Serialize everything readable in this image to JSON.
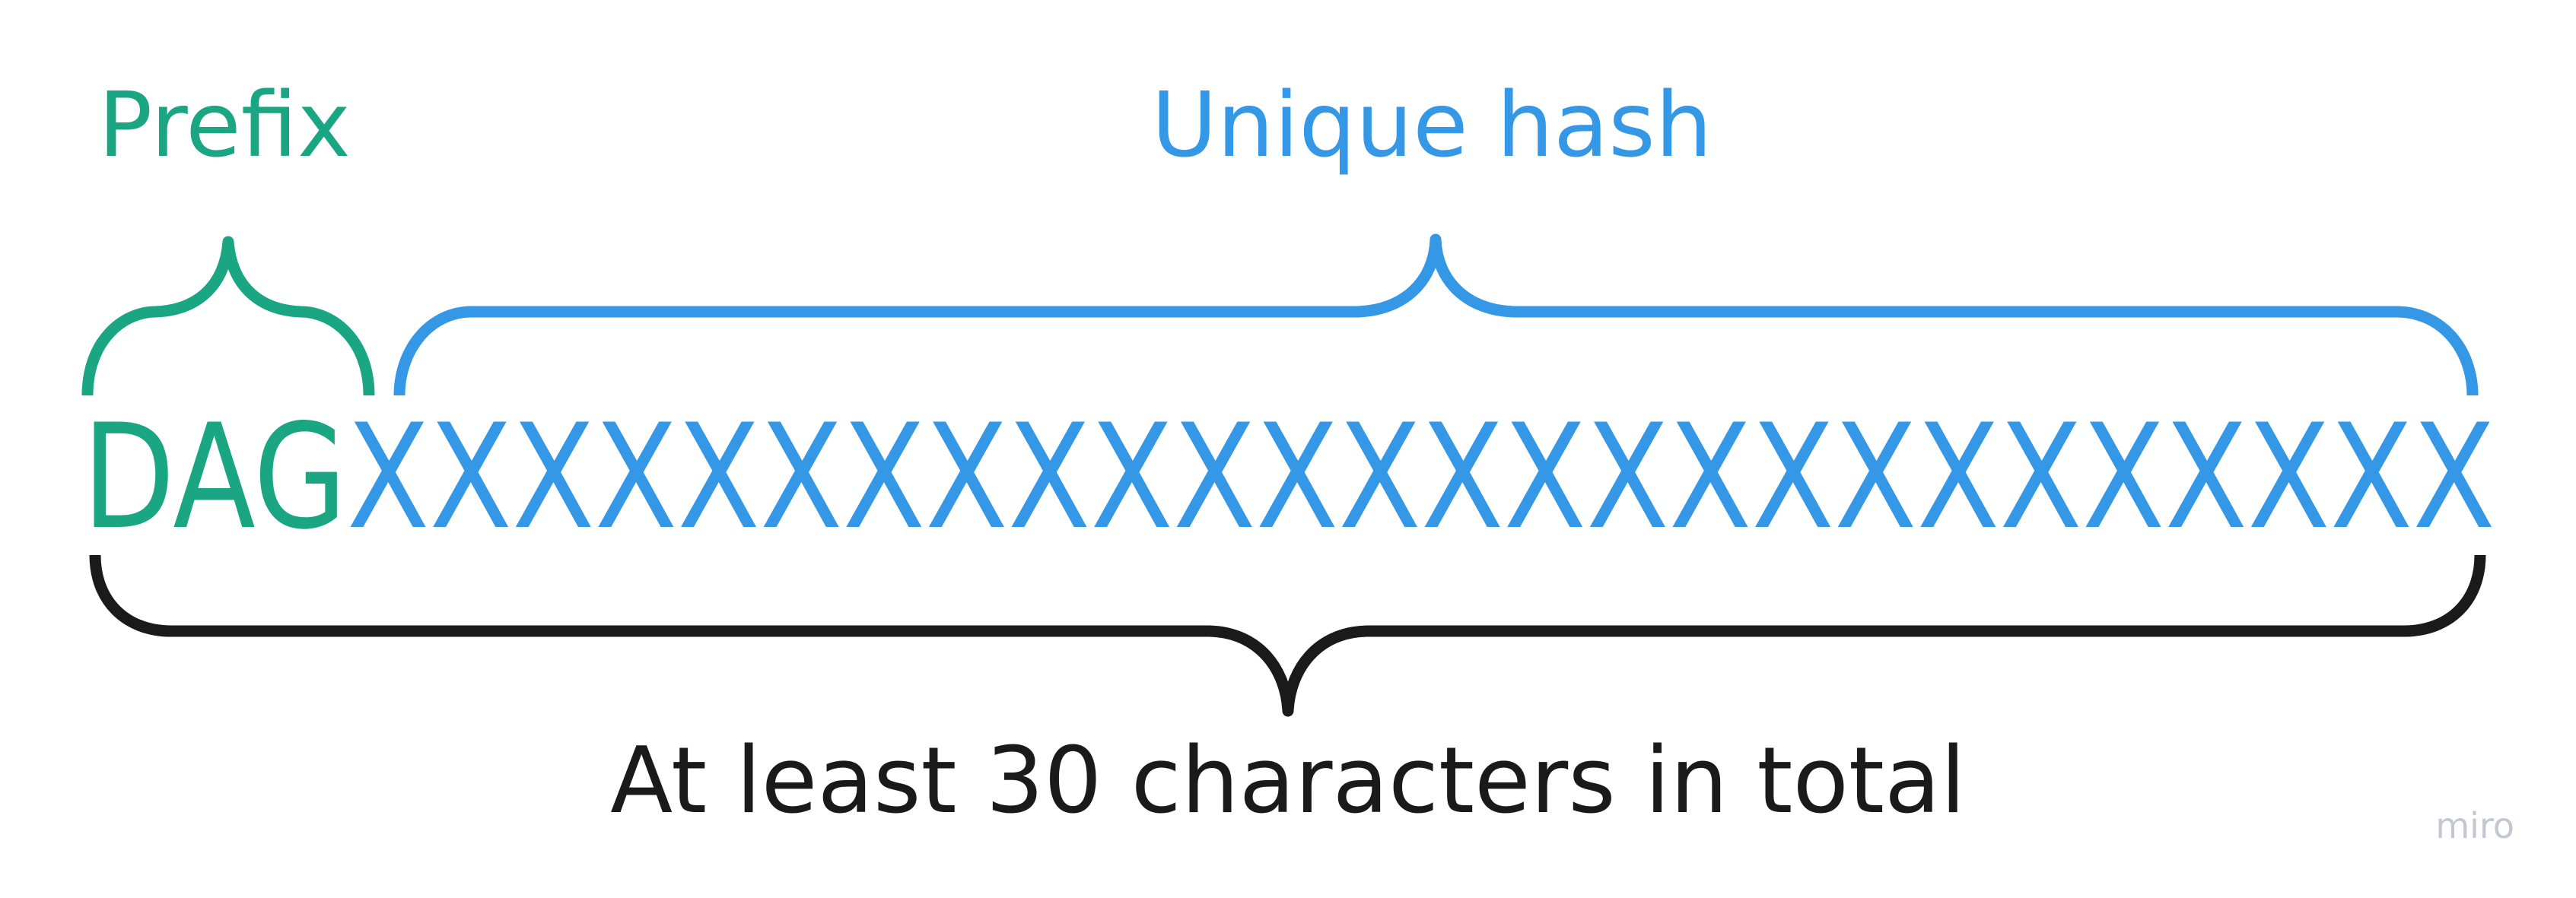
{
  "diagram": {
    "prefix_label": "Prefix",
    "hash_label": "Unique hash",
    "total_label": "At least 30 characters in total",
    "prefix_text": "DAG",
    "hash_text": "XXXXXXXXXXXXXXXXXXXXXXXXXX",
    "watermark": "miro"
  },
  "colors": {
    "prefix": "#1aa683",
    "hash": "#3598e7",
    "total": "#1a1a1a",
    "watermark": "#c3c7cf"
  }
}
